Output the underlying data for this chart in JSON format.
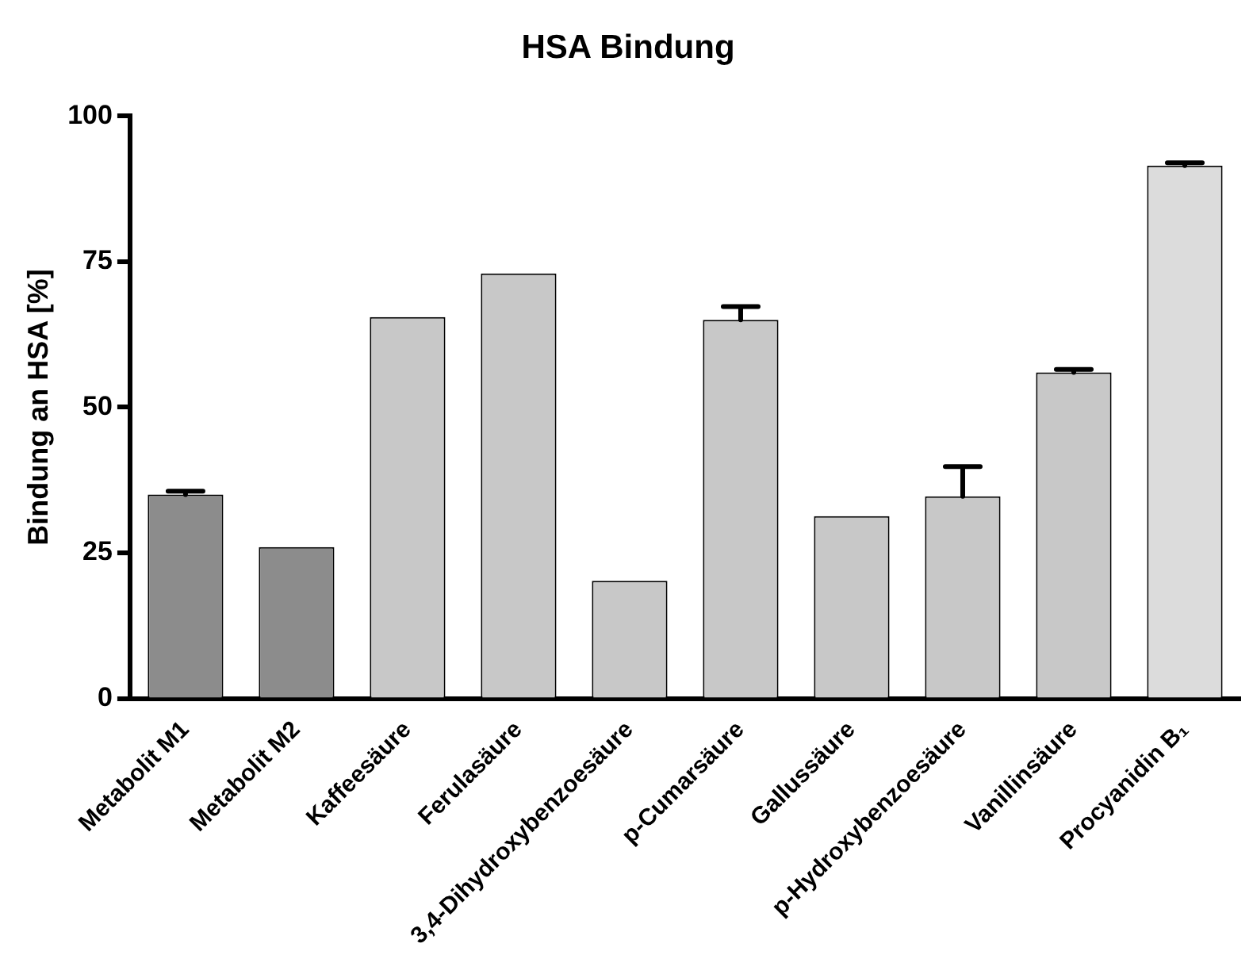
{
  "chart_data": {
    "type": "bar",
    "title": "HSA Bindung",
    "ylabel": "Bindung an HSA [%]",
    "categories": [
      "Metabolit M1",
      "Metabolit M2",
      "Kaffeesäure",
      "Ferulasäure",
      "3,4-Dihydroxybenzoesäure",
      "p-Cumarsäure",
      "Gallussäure",
      "p-Hydroxybenzoesäure",
      "Vanillinsäure",
      "Procyanidin B₁"
    ],
    "values": [
      35,
      26,
      65.5,
      73,
      20.2,
      65,
      31.3,
      34.7,
      56,
      91.5
    ],
    "colors": [
      "#8c8c8c",
      "#8c8c8c",
      "#c8c8c8",
      "#c8c8c8",
      "#c8c8c8",
      "#c8c8c8",
      "#c8c8c8",
      "#c8c8c8",
      "#c8c8c8",
      "#dcdcdc"
    ],
    "errors": [
      [
        35,
        35.6
      ],
      null,
      null,
      null,
      null,
      [
        65,
        67.3
      ],
      null,
      [
        34.7,
        39.8
      ],
      [
        56,
        56.5
      ],
      [
        91.5,
        92
      ]
    ],
    "ylim": [
      0,
      100
    ],
    "yticks": [
      0,
      25,
      50,
      75,
      100
    ],
    "grid": false,
    "legend": false
  }
}
